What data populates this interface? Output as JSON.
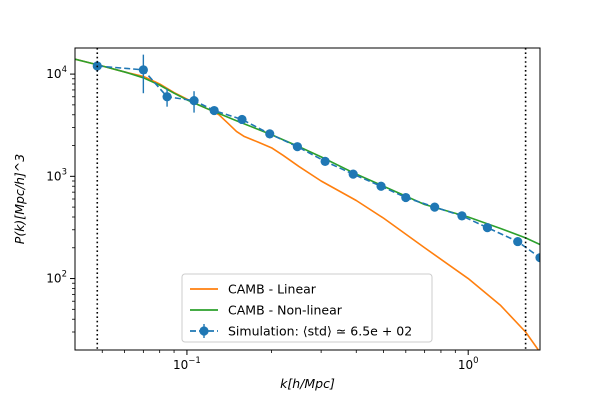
{
  "chart_data": {
    "type": "line",
    "scale": {
      "x": "log",
      "y": "log"
    },
    "xlim": [
      0.04,
      1.8
    ],
    "ylim": [
      20,
      18000
    ],
    "xlabel": "k[h/Mpc]",
    "ylabel": "P(k)[Mpc/h]^3",
    "x_ticks": [
      {
        "value": 0.1,
        "base": "10",
        "exp": "−1"
      },
      {
        "value": 1,
        "base": "10",
        "exp": "0"
      }
    ],
    "y_ticks": [
      {
        "value": 100,
        "base": "10",
        "exp": "2"
      },
      {
        "value": 1000,
        "base": "10",
        "exp": "3"
      },
      {
        "value": 10000,
        "base": "10",
        "exp": "4"
      }
    ],
    "vlines": [
      0.048,
      1.6
    ],
    "legend_position": "lower-center",
    "series": [
      {
        "name": "CAMB - Linear",
        "color": "#ff7f0e",
        "style": "solid",
        "x": [
          0.04,
          0.05,
          0.06,
          0.07,
          0.08,
          0.09,
          0.1,
          0.11,
          0.12,
          0.13,
          0.14,
          0.15,
          0.16,
          0.18,
          0.2,
          0.22,
          0.25,
          0.3,
          0.4,
          0.5,
          0.7,
          1.0,
          1.3,
          1.6,
          1.8
        ],
        "y": [
          14000,
          12000,
          10500,
          9500,
          8000,
          6600,
          5700,
          5000,
          4500,
          4000,
          3300,
          2750,
          2450,
          2150,
          1900,
          1600,
          1250,
          900,
          580,
          390,
          200,
          100,
          55,
          30,
          19
        ]
      },
      {
        "name": "CAMB - Non-linear",
        "color": "#2ca02c",
        "style": "solid",
        "x": [
          0.04,
          0.05,
          0.06,
          0.07,
          0.08,
          0.09,
          0.1,
          0.12,
          0.15,
          0.2,
          0.25,
          0.3,
          0.4,
          0.5,
          0.7,
          1.0,
          1.3,
          1.6,
          1.8
        ],
        "y": [
          14000,
          12000,
          10500,
          9200,
          7800,
          6500,
          5600,
          4500,
          3500,
          2550,
          1950,
          1550,
          1050,
          800,
          530,
          400,
          310,
          250,
          215
        ]
      },
      {
        "name": "Simulation: ⟨std⟩ ≃ 6.5e + 02",
        "color": "#1f77b4",
        "style": "dashed",
        "marker": "circle",
        "x": [
          0.048,
          0.07,
          0.085,
          0.106,
          0.125,
          0.157,
          0.197,
          0.247,
          0.31,
          0.39,
          0.49,
          0.6,
          0.76,
          0.95,
          1.17,
          1.5,
          1.8
        ],
        "y": [
          12000,
          11000,
          6000,
          5500,
          4400,
          3600,
          2600,
          1950,
          1400,
          1050,
          800,
          620,
          500,
          410,
          315,
          230,
          160
        ],
        "err": [
          1500,
          4500,
          1200,
          1300,
          400,
          350,
          250,
          180,
          120,
          90,
          70,
          50,
          40,
          30,
          25,
          20,
          15
        ]
      }
    ]
  }
}
